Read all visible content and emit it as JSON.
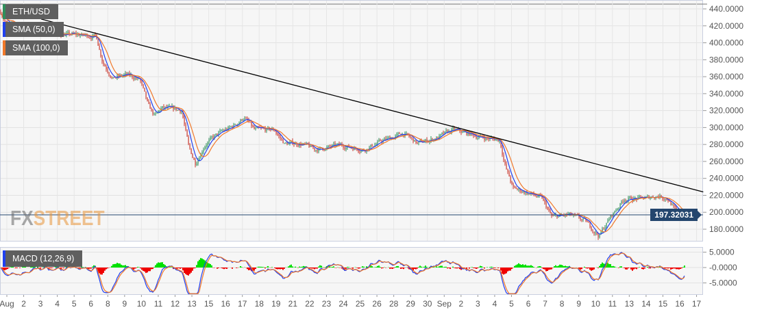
{
  "legend": {
    "symbol": "ETH/USD",
    "sma50": "SMA (50,0)",
    "sma100": "SMA (100,0)",
    "macd": "MACD (12,26,9)"
  },
  "watermark": {
    "part1": "FX",
    "part2": "STREET"
  },
  "current_price": "197.32031",
  "colors": {
    "up": "#2f8f5b",
    "down": "#c8372d",
    "sma50": "#2040f0",
    "sma100": "#f0782a",
    "trend": "#000000",
    "hist_up": "#00e000",
    "hist_down": "#f00000",
    "price_tag": "#24466e"
  },
  "chart_data": {
    "type": "candlestick",
    "title": "ETH/USD",
    "ylim": [
      175,
      445
    ],
    "price_ticks": [
      "440.0000",
      "420.0000",
      "400.0000",
      "380.0000",
      "360.0000",
      "340.0000",
      "320.0000",
      "300.0000",
      "280.0000",
      "260.0000",
      "240.0000",
      "220.0000",
      "200.0000",
      "180.0000"
    ],
    "price_tick_values": [
      440,
      420,
      400,
      380,
      360,
      340,
      320,
      300,
      280,
      260,
      240,
      220,
      200,
      180
    ],
    "macd_ticks": [
      "5.0000",
      "-0.0000",
      "-5.0000"
    ],
    "macd_tick_values": [
      5,
      0,
      -5
    ],
    "x_ticks": [
      "Aug",
      "2",
      "3",
      "4",
      "5",
      "6",
      "8",
      "9",
      "10",
      "11",
      "12",
      "13",
      "15",
      "16",
      "17",
      "18",
      "19",
      "21",
      "22",
      "23",
      "24",
      "25",
      "26",
      "28",
      "29",
      "30",
      "Sep",
      "2",
      "3",
      "4",
      "5",
      "6",
      "7",
      "8",
      "9",
      "10",
      "11",
      "13",
      "14",
      "15",
      "16",
      "17"
    ],
    "price_path": [
      [
        -0.4,
        438
      ],
      [
        0,
        422
      ],
      [
        1.2,
        414
      ],
      [
        2,
        414
      ],
      [
        3.3,
        410
      ],
      [
        5.3,
        408
      ],
      [
        5.7,
        378
      ],
      [
        6.3,
        358
      ],
      [
        7.1,
        362
      ],
      [
        7.9,
        357
      ],
      [
        8.4,
        325
      ],
      [
        8.8,
        313
      ],
      [
        9.2,
        323
      ],
      [
        10.4,
        320
      ],
      [
        10.8,
        277
      ],
      [
        11.2,
        258
      ],
      [
        11.8,
        281
      ],
      [
        12.6,
        293
      ],
      [
        13.4,
        301
      ],
      [
        14.1,
        312
      ],
      [
        14.7,
        297
      ],
      [
        15.9,
        297
      ],
      [
        16.5,
        281
      ],
      [
        17.5,
        281
      ],
      [
        18.3,
        274
      ],
      [
        19.9,
        279
      ],
      [
        21.2,
        274
      ],
      [
        22.4,
        285
      ],
      [
        23.6,
        293
      ],
      [
        24.4,
        281
      ],
      [
        25.7,
        289
      ],
      [
        26.5,
        297
      ],
      [
        28.1,
        289
      ],
      [
        29.3,
        285
      ],
      [
        29.65,
        253
      ],
      [
        30.1,
        228
      ],
      [
        30.8,
        224
      ],
      [
        31.8,
        216
      ],
      [
        32.4,
        194
      ],
      [
        33.4,
        197
      ],
      [
        34.4,
        189
      ],
      [
        35.2,
        172
      ],
      [
        35.8,
        192
      ],
      [
        36.7,
        216
      ],
      [
        37.9,
        216
      ],
      [
        38.7,
        220
      ],
      [
        39.3,
        216
      ],
      [
        39.9,
        197
      ],
      [
        40.4,
        197
      ]
    ],
    "trendline": [
      [
        2.04,
        428
      ],
      [
        41.4,
        224
      ]
    ],
    "current_price": 197.32031
  }
}
